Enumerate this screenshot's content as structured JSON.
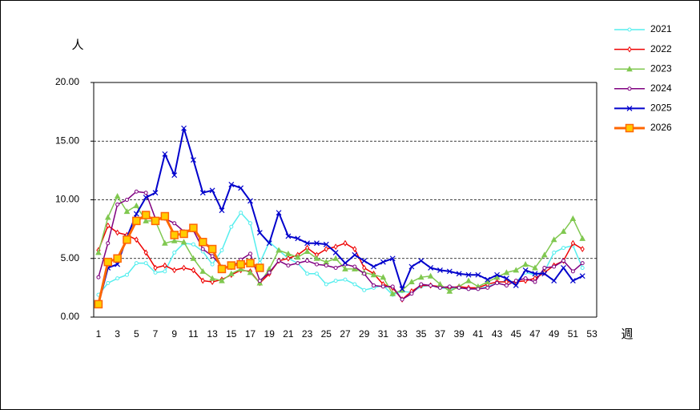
{
  "chart_data": {
    "type": "line",
    "y_label": "人",
    "x_label": "週",
    "categories": [
      1,
      null,
      3,
      null,
      5,
      null,
      7,
      null,
      9,
      null,
      11,
      null,
      13,
      null,
      15,
      null,
      17,
      null,
      19,
      null,
      21,
      null,
      23,
      null,
      25,
      null,
      27,
      null,
      29,
      null,
      31,
      null,
      33,
      null,
      35,
      null,
      37,
      null,
      39,
      null,
      41,
      null,
      43,
      null,
      45,
      null,
      47,
      null,
      49,
      null,
      51,
      null,
      53
    ],
    "ylim": [
      0,
      20
    ],
    "yticks": [
      {
        "value": 0,
        "label": "0.00"
      },
      {
        "value": 5,
        "label": "5.00"
      },
      {
        "value": 10,
        "label": "10.00"
      },
      {
        "value": 15,
        "label": "15.00"
      },
      {
        "value": 20,
        "label": "20.00"
      }
    ],
    "grid": true,
    "legend": "right",
    "series": [
      {
        "name": "2021",
        "color": "#55eeee",
        "marker": "circle",
        "width": 1.5,
        "values": [
          1.9,
          2.9,
          3.3,
          3.6,
          4.6,
          4.6,
          3.8,
          3.9,
          5.5,
          6.3,
          6.2,
          5.6,
          4.5,
          5.7,
          7.7,
          8.9,
          8.0,
          4.6,
          6.4,
          5.7,
          5.0,
          4.6,
          3.7,
          3.7,
          2.8,
          3.1,
          3.2,
          2.8,
          2.3,
          2.5,
          2.7,
          1.9,
          2.2,
          2.1,
          2.6,
          2.7,
          2.5,
          2.4,
          2.5,
          2.4,
          2.4,
          2.6,
          2.9,
          3.1,
          3.0,
          3.8,
          3.6,
          3.9,
          5.5,
          5.9,
          6.1,
          4.2,
          null
        ]
      },
      {
        "name": "2022",
        "color": "#ee0000",
        "marker": "diamond",
        "width": 1.5,
        "values": [
          5.7,
          7.8,
          7.2,
          7.0,
          6.6,
          5.5,
          4.2,
          4.4,
          4.0,
          4.2,
          4.0,
          3.1,
          3.0,
          3.2,
          3.6,
          4.0,
          3.9,
          2.9,
          3.7,
          4.8,
          5.0,
          5.3,
          5.9,
          5.3,
          5.8,
          6.0,
          6.3,
          5.8,
          4.2,
          3.7,
          2.8,
          2.5,
          1.5,
          2.2,
          2.7,
          2.7,
          2.6,
          2.5,
          2.6,
          2.5,
          2.5,
          2.8,
          3.0,
          3.0,
          3.0,
          3.1,
          3.3,
          3.8,
          4.4,
          4.8,
          6.3,
          5.8,
          null
        ]
      },
      {
        "name": "2023",
        "color": "#80c850",
        "marker": "triangle",
        "width": 1.5,
        "values": [
          5.5,
          8.5,
          10.3,
          9.0,
          9.5,
          8.2,
          8.2,
          6.3,
          6.5,
          6.4,
          5.0,
          3.9,
          3.3,
          3.1,
          3.7,
          4.1,
          3.8,
          2.9,
          4.1,
          5.7,
          5.4,
          5.1,
          5.6,
          5.0,
          4.7,
          5.0,
          4.1,
          4.1,
          3.8,
          3.6,
          3.4,
          2.0,
          2.3,
          3.0,
          3.4,
          3.5,
          2.8,
          2.2,
          2.6,
          3.1,
          2.6,
          3.0,
          3.4,
          3.8,
          4.0,
          4.5,
          4.2,
          5.3,
          6.6,
          7.3,
          8.4,
          6.7,
          null
        ]
      },
      {
        "name": "2024",
        "color": "#800080",
        "marker": "circle",
        "width": 1.5,
        "values": [
          3.4,
          6.3,
          9.6,
          10.0,
          10.7,
          10.6,
          8.4,
          8.4,
          8.0,
          7.3,
          7.4,
          5.8,
          5.2,
          4.3,
          4.2,
          4.9,
          5.4,
          3.1,
          3.8,
          4.8,
          4.4,
          4.6,
          4.8,
          4.5,
          4.4,
          4.2,
          4.5,
          4.3,
          3.7,
          2.7,
          2.6,
          2.6,
          1.5,
          2.0,
          2.8,
          2.7,
          2.5,
          2.6,
          2.5,
          2.4,
          2.4,
          2.5,
          2.9,
          2.7,
          3.1,
          3.3,
          3.0,
          4.2,
          4.3,
          4.8,
          3.9,
          4.6,
          null
        ]
      },
      {
        "name": "2025",
        "color": "#0000cc",
        "marker": "x",
        "width": 2,
        "values": [
          1.1,
          4.2,
          4.5,
          6.8,
          8.8,
          10.2,
          10.6,
          13.9,
          12.1,
          16.1,
          13.4,
          10.6,
          10.8,
          9.1,
          11.3,
          11.0,
          9.9,
          7.2,
          6.3,
          8.9,
          6.9,
          6.7,
          6.3,
          6.3,
          6.2,
          5.5,
          4.6,
          5.3,
          4.8,
          4.3,
          4.7,
          5.0,
          2.4,
          4.3,
          4.8,
          4.2,
          4.0,
          3.9,
          3.7,
          3.6,
          3.6,
          3.2,
          3.6,
          3.3,
          2.7,
          4.0,
          3.7,
          3.7,
          3.1,
          4.2,
          3.1,
          3.5,
          null
        ]
      },
      {
        "name": "2026",
        "color": "#ff6600",
        "marker": "square",
        "width": 3,
        "values": [
          1.1,
          4.7,
          5.0,
          6.6,
          8.2,
          8.7,
          8.2,
          8.6,
          7.0,
          7.1,
          7.6,
          6.4,
          5.8,
          4.1,
          4.4,
          4.5,
          4.6,
          4.2,
          null,
          null,
          null,
          null,
          null,
          null,
          null,
          null,
          null,
          null,
          null,
          null,
          null,
          null,
          null,
          null,
          null,
          null,
          null,
          null,
          null,
          null,
          null,
          null,
          null,
          null,
          null,
          null,
          null,
          null,
          null,
          null,
          null,
          null,
          null
        ]
      }
    ]
  }
}
